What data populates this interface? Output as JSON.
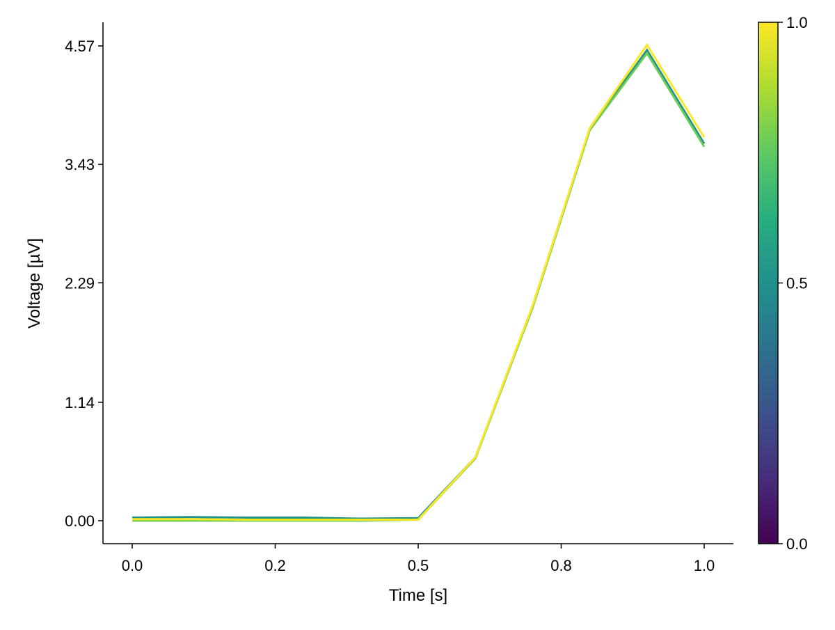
{
  "chart_data": {
    "type": "line",
    "xlabel": "Time [s]",
    "ylabel": "Voltage [µV]",
    "xlim": [
      -0.05,
      1.05
    ],
    "ylim": [
      -0.22,
      4.77
    ],
    "xticks": [
      0,
      0.25,
      0.5,
      0.75,
      1.0
    ],
    "xtick_labels": [
      "0.0",
      "0.2",
      "0.5",
      "0.8",
      "1.0"
    ],
    "yticks": [
      0,
      1.14,
      2.29,
      3.43,
      4.57
    ],
    "ytick_labels": [
      "0.00",
      "1.14",
      "2.29",
      "3.43",
      "4.57"
    ],
    "grid": false,
    "x": [
      0,
      0.1,
      0.2,
      0.3,
      0.4,
      0.5,
      0.6,
      0.7,
      0.8,
      0.9,
      1.0
    ],
    "series": [
      {
        "color_value": 0.5,
        "color": "#21918c",
        "values": [
          0.03,
          0.035,
          0.03,
          0.03,
          0.02,
          0.025,
          0.61,
          2.06,
          3.77,
          4.53,
          3.63
        ]
      },
      {
        "color_value": 0.8,
        "color": "#6ccd5a",
        "values": [
          0.0,
          0.0,
          0.0,
          0.0,
          0.0,
          0.01,
          0.6,
          2.05,
          3.76,
          4.5,
          3.6
        ]
      },
      {
        "color_value": 1.0,
        "color": "#fde725",
        "values": [
          0.015,
          0.015,
          0.01,
          0.01,
          0.01,
          0.01,
          0.61,
          2.07,
          3.78,
          4.58,
          3.69
        ]
      }
    ],
    "colorbar": {
      "colormap": "viridis",
      "range": [
        0,
        1
      ],
      "ticks": [
        0,
        0.5,
        1.0
      ],
      "tick_labels": [
        "0.0",
        "0.5",
        "1.0"
      ]
    }
  }
}
